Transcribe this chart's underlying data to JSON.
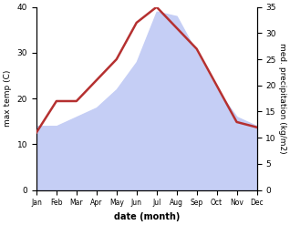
{
  "months": [
    "Jan",
    "Feb",
    "Mar",
    "Apr",
    "May",
    "Jun",
    "Jul",
    "Aug",
    "Sep",
    "Oct",
    "Nov",
    "Dec"
  ],
  "temp": [
    14,
    14,
    16,
    18,
    22,
    28,
    39,
    38,
    30,
    22,
    16,
    14
  ],
  "precip": [
    11,
    17,
    17,
    21,
    25,
    32,
    35,
    31,
    27,
    20,
    13,
    12
  ],
  "temp_ylim": [
    0,
    40
  ],
  "precip_ylim": [
    0,
    35
  ],
  "fill_color": "#c5cef5",
  "line_color": "#b53030",
  "xlabel": "date (month)",
  "ylabel_left": "max temp (C)",
  "ylabel_right": "med. precipitation (kg/m2)",
  "bg_color": "#ffffff",
  "yticks_left": [
    0,
    10,
    20,
    30,
    40
  ],
  "yticks_right": [
    0,
    5,
    10,
    15,
    20,
    25,
    30,
    35
  ]
}
